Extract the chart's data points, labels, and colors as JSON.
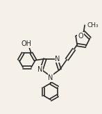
{
  "bg_color": "#f5f0e8",
  "line_color": "#2a2a2a",
  "line_width": 1.2,
  "font_size": 7.0,
  "figsize": [
    1.47,
    1.64
  ],
  "dpi": 100,
  "xlim": [
    0,
    147
  ],
  "ylim": [
    0,
    164
  ]
}
